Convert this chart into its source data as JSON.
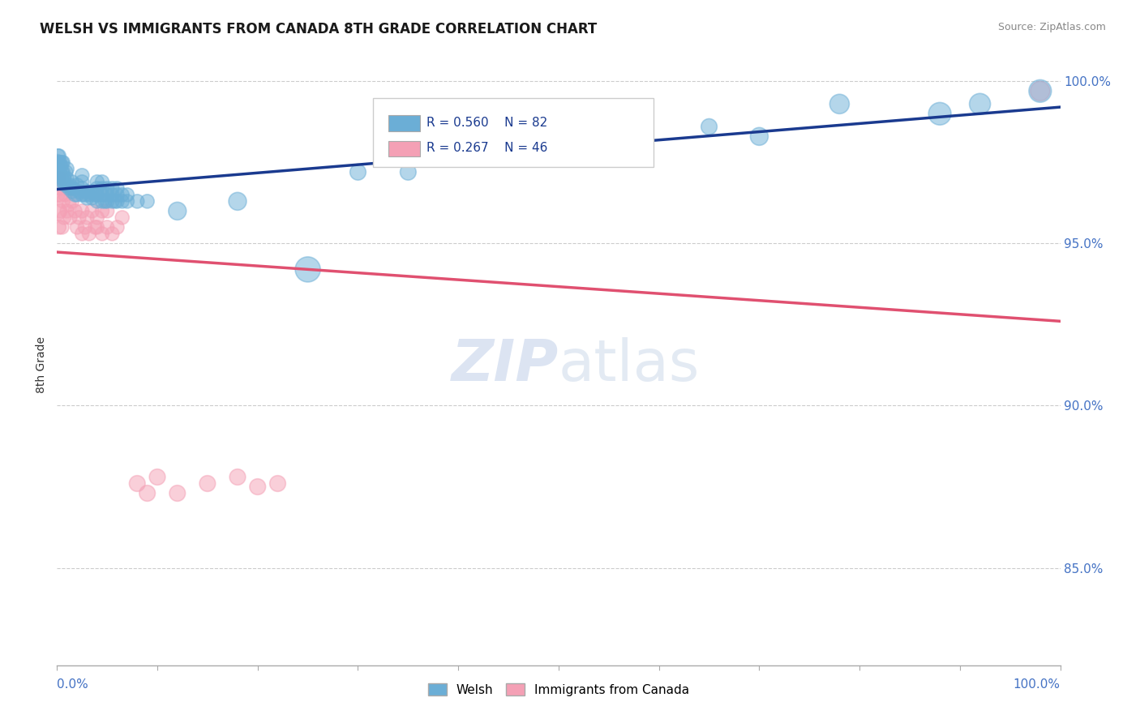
{
  "title": "WELSH VS IMMIGRANTS FROM CANADA 8TH GRADE CORRELATION CHART",
  "source": "Source: ZipAtlas.com",
  "ylabel": "8th Grade",
  "xlim": [
    0.0,
    1.0
  ],
  "ylim": [
    0.82,
    1.005
  ],
  "ytick_labels": [
    "85.0%",
    "90.0%",
    "95.0%",
    "100.0%"
  ],
  "ytick_values": [
    0.85,
    0.9,
    0.95,
    1.0
  ],
  "welsh_color": "#6baed6",
  "canada_color": "#f4a0b5",
  "welsh_R": 0.56,
  "welsh_N": 82,
  "canada_R": 0.267,
  "canada_N": 46,
  "trend_welsh_color": "#1a3a8f",
  "trend_canada_color": "#e05070",
  "watermark_zip": "ZIP",
  "watermark_atlas": "atlas",
  "background_color": "#ffffff",
  "grid_color": "#cccccc",
  "axis_color": "#aaaaaa",
  "welsh_scatter_x": [
    0.0,
    0.0,
    0.0,
    0.001,
    0.001,
    0.001,
    0.002,
    0.002,
    0.003,
    0.003,
    0.004,
    0.004,
    0.005,
    0.005,
    0.005,
    0.006,
    0.006,
    0.006,
    0.007,
    0.008,
    0.009,
    0.01,
    0.01,
    0.01,
    0.012,
    0.013,
    0.014,
    0.015,
    0.015,
    0.016,
    0.018,
    0.02,
    0.02,
    0.022,
    0.025,
    0.025,
    0.025,
    0.025,
    0.028,
    0.03,
    0.03,
    0.032,
    0.035,
    0.035,
    0.038,
    0.04,
    0.04,
    0.04,
    0.04,
    0.045,
    0.045,
    0.045,
    0.045,
    0.048,
    0.05,
    0.05,
    0.05,
    0.055,
    0.055,
    0.055,
    0.058,
    0.06,
    0.06,
    0.06,
    0.065,
    0.065,
    0.07,
    0.07,
    0.08,
    0.09,
    0.12,
    0.18,
    0.25,
    0.3,
    0.35,
    0.55,
    0.65,
    0.7,
    0.78,
    0.88,
    0.92,
    0.98
  ],
  "welsh_scatter_y": [
    0.975,
    0.973,
    0.969,
    0.977,
    0.973,
    0.975,
    0.972,
    0.977,
    0.971,
    0.975,
    0.974,
    0.971,
    0.97,
    0.972,
    0.975,
    0.969,
    0.972,
    0.975,
    0.97,
    0.968,
    0.972,
    0.968,
    0.97,
    0.973,
    0.967,
    0.968,
    0.967,
    0.966,
    0.969,
    0.967,
    0.965,
    0.965,
    0.968,
    0.966,
    0.965,
    0.967,
    0.969,
    0.971,
    0.965,
    0.964,
    0.966,
    0.965,
    0.964,
    0.966,
    0.965,
    0.963,
    0.965,
    0.967,
    0.969,
    0.963,
    0.965,
    0.967,
    0.969,
    0.963,
    0.963,
    0.965,
    0.967,
    0.963,
    0.965,
    0.967,
    0.963,
    0.963,
    0.965,
    0.967,
    0.963,
    0.965,
    0.963,
    0.965,
    0.963,
    0.963,
    0.96,
    0.963,
    0.942,
    0.972,
    0.972,
    0.985,
    0.986,
    0.983,
    0.993,
    0.99,
    0.993,
    0.997
  ],
  "welsh_scatter_s": [
    200,
    200,
    180,
    150,
    150,
    150,
    150,
    150,
    150,
    150,
    150,
    150,
    150,
    150,
    150,
    150,
    150,
    150,
    150,
    150,
    150,
    150,
    150,
    150,
    150,
    150,
    150,
    150,
    150,
    150,
    150,
    150,
    150,
    150,
    150,
    150,
    150,
    150,
    150,
    150,
    150,
    150,
    150,
    150,
    150,
    150,
    150,
    150,
    150,
    150,
    150,
    150,
    150,
    150,
    150,
    150,
    150,
    150,
    150,
    150,
    150,
    150,
    150,
    150,
    150,
    150,
    150,
    150,
    150,
    150,
    250,
    250,
    500,
    200,
    200,
    200,
    200,
    250,
    300,
    400,
    350,
    400
  ],
  "canada_scatter_x": [
    0.0,
    0.0,
    0.0,
    0.001,
    0.001,
    0.002,
    0.002,
    0.003,
    0.004,
    0.005,
    0.005,
    0.006,
    0.007,
    0.008,
    0.01,
    0.012,
    0.013,
    0.015,
    0.018,
    0.02,
    0.022,
    0.025,
    0.025,
    0.028,
    0.03,
    0.032,
    0.035,
    0.038,
    0.04,
    0.04,
    0.045,
    0.045,
    0.05,
    0.05,
    0.055,
    0.06,
    0.065,
    0.08,
    0.09,
    0.1,
    0.12,
    0.15,
    0.18,
    0.2,
    0.22,
    0.98
  ],
  "canada_scatter_y": [
    0.972,
    0.968,
    0.96,
    0.965,
    0.97,
    0.955,
    0.97,
    0.96,
    0.965,
    0.955,
    0.97,
    0.963,
    0.958,
    0.965,
    0.96,
    0.962,
    0.958,
    0.963,
    0.96,
    0.955,
    0.958,
    0.953,
    0.96,
    0.955,
    0.958,
    0.953,
    0.96,
    0.955,
    0.955,
    0.958,
    0.953,
    0.96,
    0.955,
    0.96,
    0.953,
    0.955,
    0.958,
    0.876,
    0.873,
    0.878,
    0.873,
    0.876,
    0.878,
    0.875,
    0.876,
    0.997
  ],
  "canada_scatter_s": [
    300,
    300,
    280,
    150,
    150,
    150,
    150,
    150,
    150,
    150,
    150,
    150,
    150,
    150,
    150,
    150,
    150,
    150,
    150,
    150,
    150,
    150,
    150,
    150,
    150,
    150,
    150,
    150,
    150,
    150,
    150,
    150,
    150,
    150,
    150,
    150,
    150,
    200,
    200,
    200,
    200,
    200,
    200,
    200,
    200,
    300
  ]
}
